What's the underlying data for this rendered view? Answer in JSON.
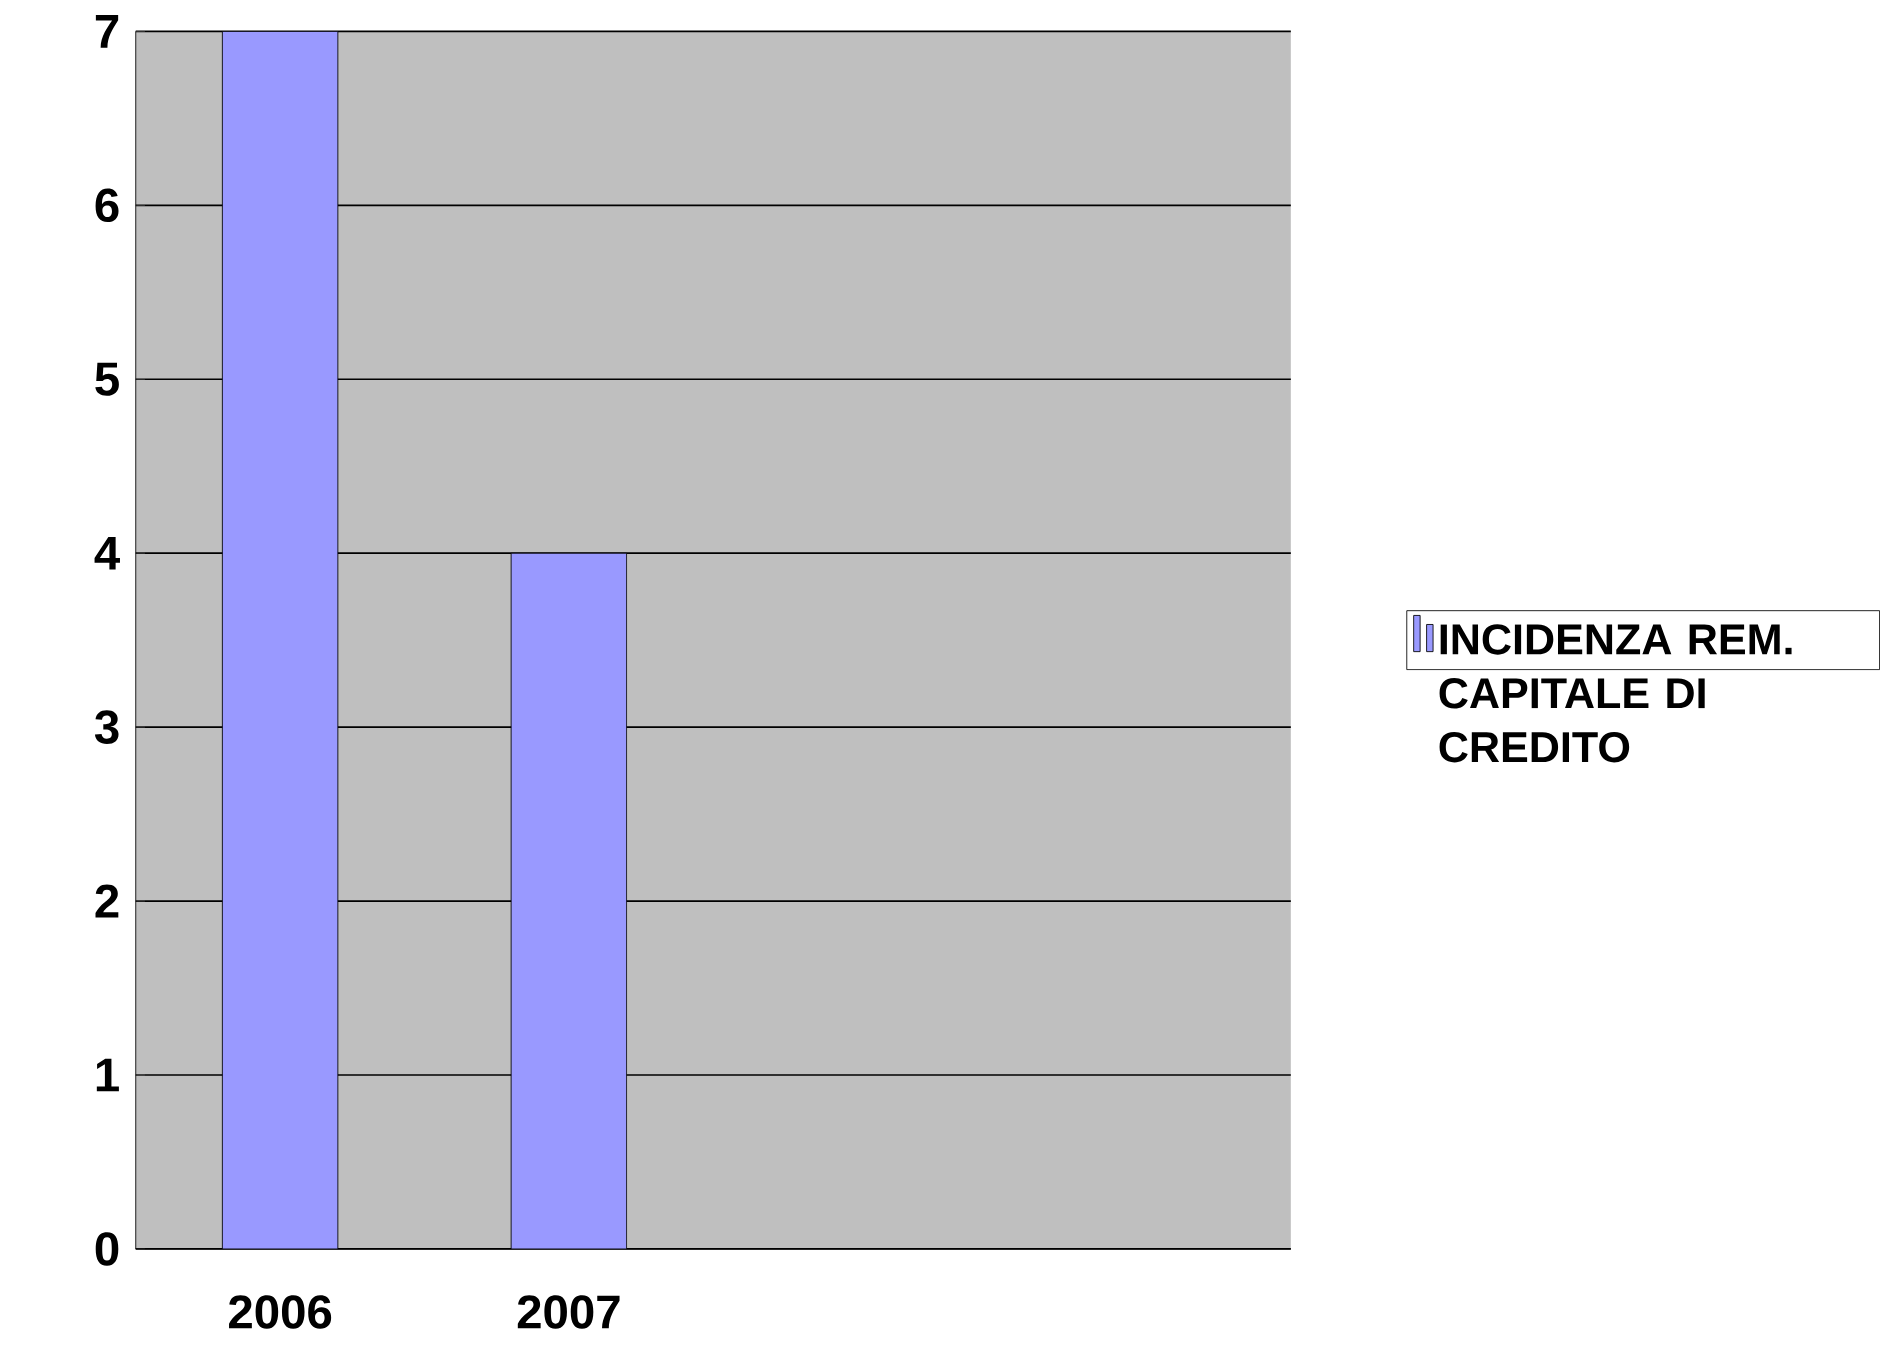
{
  "chart_data": {
    "type": "bar",
    "categories": [
      "2006",
      "2007",
      null,
      null
    ],
    "series": [
      {
        "name": "INCIDENZA REM. CAPITALE DI CREDITO",
        "color": "#9999ff",
        "values": [
          7,
          4,
          null,
          null
        ]
      }
    ],
    "ylim": [
      0,
      7
    ],
    "yticks": [
      0,
      1,
      2,
      3,
      4,
      5,
      6,
      7
    ],
    "grid": "y",
    "legend": "right"
  }
}
